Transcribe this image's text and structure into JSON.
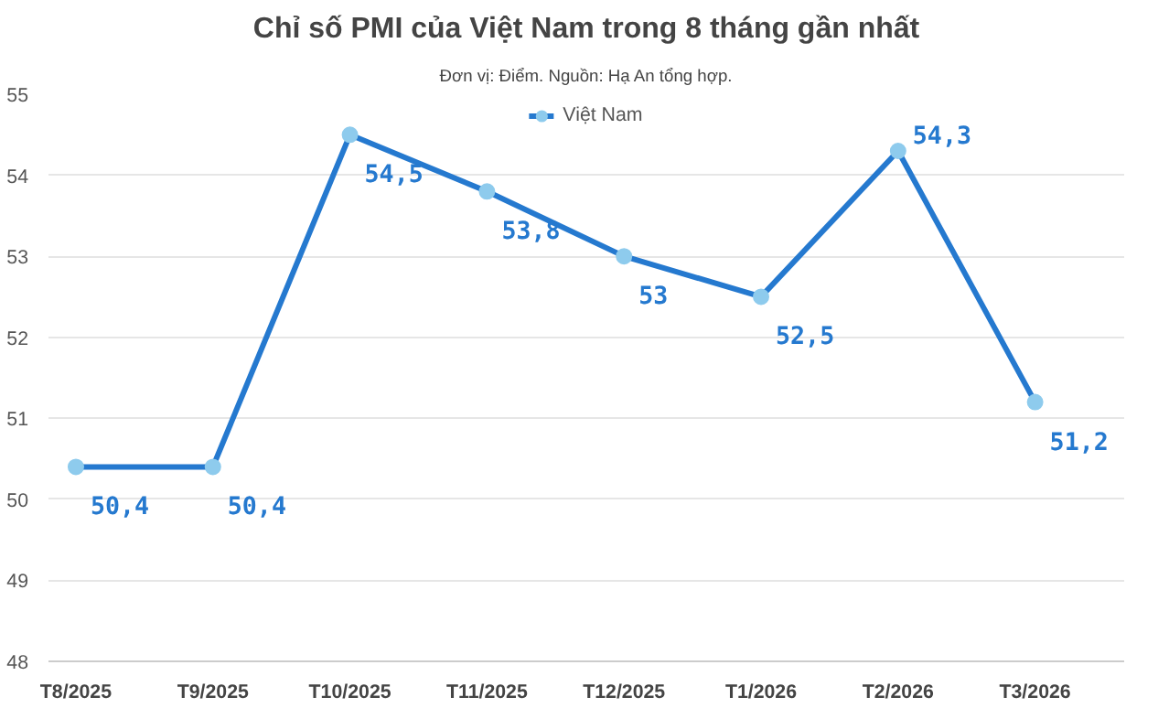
{
  "chart_data": {
    "type": "line",
    "title": "Chỉ số PMI của Việt Nam trong 8 tháng gần nhất",
    "subtitle": "Đơn vị: Điểm. Nguồn: Hạ An tổng hợp.",
    "categories": [
      "T8/2025",
      "T9/2025",
      "T10/2025",
      "T11/2025",
      "T12/2025",
      "T1/2026",
      "T2/2026",
      "T3/2026"
    ],
    "series": [
      {
        "name": "Việt Nam",
        "color": "#2579cf",
        "values": [
          50.4,
          50.4,
          54.5,
          53.8,
          53,
          52.5,
          54.3,
          51.2
        ],
        "value_labels": [
          "50,4",
          "50,4",
          "54,5",
          "53,8",
          "53",
          "52,5",
          "54,3",
          "51,2"
        ]
      }
    ],
    "ylim": [
      48,
      55
    ],
    "yticks": [
      48,
      49,
      50,
      51,
      52,
      53,
      54,
      55
    ],
    "grid": "y",
    "legend": "top",
    "marker": "circle",
    "line_style": "solid"
  }
}
